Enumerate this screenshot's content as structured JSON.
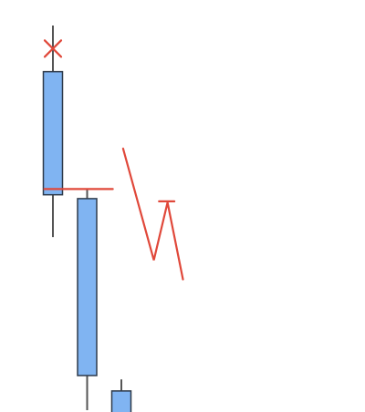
{
  "chart_data": {
    "type": "candlestick",
    "title": "",
    "xlabel": "",
    "ylabel": "",
    "grid": false,
    "legend": false,
    "colors": {
      "candle_fill": "#80b4f2",
      "candle_stroke": "#2e3a4a",
      "wick": "#555555",
      "annotation": "#e0483a"
    },
    "candles": [
      {
        "index": 0,
        "high": 100,
        "body_top": 88,
        "body_bottom": 56,
        "low": 45
      },
      {
        "index": 1,
        "high": 57.5,
        "body_top": 55,
        "body_bottom": 9,
        "low": 0
      },
      {
        "index": 2,
        "high": 8,
        "body_top": 5,
        "body_bottom": -1,
        "low": -1
      }
    ],
    "annotations": [
      {
        "kind": "x-mark",
        "at_candle": 0,
        "y": 94
      },
      {
        "kind": "horizontal-line",
        "x_from": -0.25,
        "x_to": 1.75,
        "y": 57.5
      },
      {
        "kind": "zigzag-path",
        "points": [
          {
            "x": 2.05,
            "y": 68
          },
          {
            "x": 2.95,
            "y": 39
          },
          {
            "x": 3.35,
            "y": 54
          },
          {
            "x": 3.8,
            "y": 34
          }
        ]
      },
      {
        "kind": "horizontal-line",
        "x_from": 3.1,
        "x_to": 3.55,
        "y": 54.3
      }
    ],
    "xlim": [
      -0.5,
      4.25
    ],
    "ylim": [
      -1,
      104
    ]
  }
}
